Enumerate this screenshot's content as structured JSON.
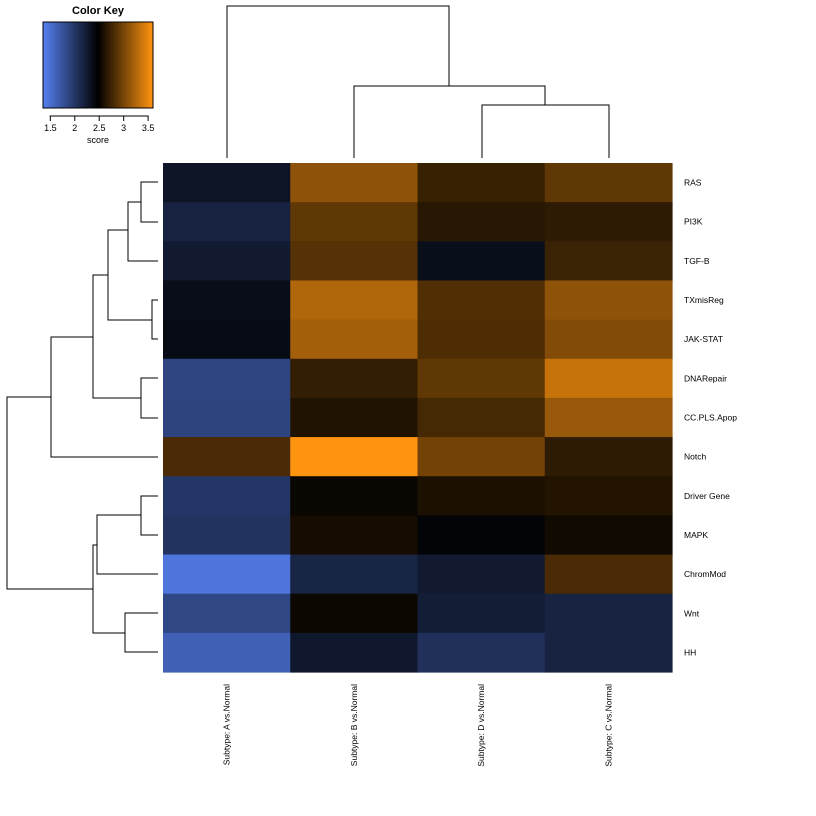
{
  "chart_data": {
    "type": "heatmap",
    "title": "Color Key",
    "color_key": {
      "xlabel": "score",
      "ticks": [
        "1.5",
        "2",
        "2.5",
        "3",
        "3.5"
      ],
      "range": [
        1.35,
        3.6
      ],
      "colors": {
        "low": "#5580f0",
        "mid": "#000000",
        "high": "#ff9410"
      }
    },
    "columns": [
      "Subtype: A vs.Normal",
      "Subtype: B vs.Normal",
      "Subtype: D vs.Normal",
      "Subtype: C vs.Normal"
    ],
    "rows": [
      "RAS",
      "PI3K",
      "TGF-B",
      "TXmisReg",
      "JAK-STAT",
      "DNARepair",
      "CC.PLS.Apop",
      "Notch",
      "Driver Gene",
      "MAPK",
      "ChromMod",
      "Wnt",
      "HH"
    ],
    "values": [
      [
        2.3,
        3.1,
        2.72,
        2.9
      ],
      [
        2.18,
        2.9,
        2.65,
        2.68
      ],
      [
        2.25,
        2.85,
        2.35,
        2.73
      ],
      [
        2.36,
        3.25,
        2.83,
        3.1
      ],
      [
        2.38,
        3.2,
        2.82,
        3.05
      ],
      [
        1.87,
        2.7,
        2.9,
        3.35
      ],
      [
        1.88,
        2.62,
        2.78,
        3.15
      ],
      [
        2.8,
        3.6,
        2.98,
        2.68
      ],
      [
        2.0,
        2.52,
        2.6,
        2.63
      ],
      [
        2.03,
        2.57,
        2.44,
        2.55
      ],
      [
        1.45,
        2.15,
        2.25,
        2.8
      ],
      [
        1.85,
        2.53,
        2.22,
        2.17
      ],
      [
        1.62,
        2.27,
        2.05,
        2.17
      ]
    ],
    "row_dendrogram": true,
    "column_dendrogram": true
  }
}
